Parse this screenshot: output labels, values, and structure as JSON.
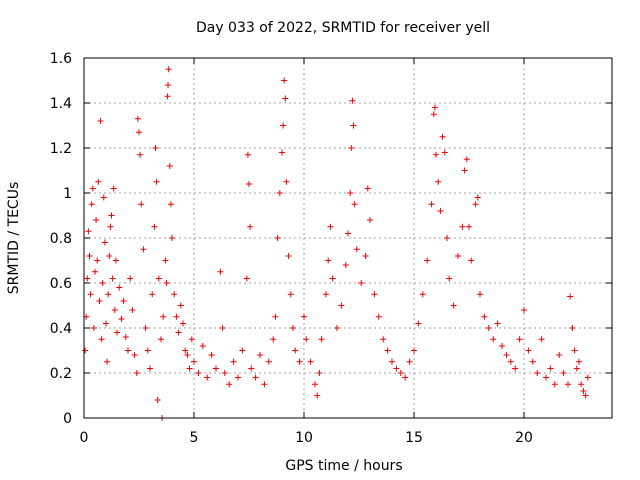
{
  "chart_data": {
    "type": "scatter",
    "title": "Day 033 of 2022, SRMTID for receiver yell",
    "xlabel": "GPS time / hours",
    "ylabel": "SRMTID / TECUs",
    "xlim": [
      0,
      24
    ],
    "ylim": [
      0,
      1.6
    ],
    "xticks": [
      0,
      5,
      10,
      15,
      20
    ],
    "xtick_labels": [
      "0",
      "5",
      "10",
      "15",
      "20"
    ],
    "yticks": [
      0,
      0.2,
      0.4,
      0.6,
      0.8,
      1,
      1.2,
      1.4,
      1.6
    ],
    "ytick_labels": [
      "0",
      "0.2",
      "0.4",
      "0.6",
      "0.8",
      "1",
      "1.2",
      "1.4",
      "1.6"
    ],
    "grid": true,
    "marker": "+",
    "color": "#ee0000",
    "series": [
      {
        "name": "SRMTID",
        "points": [
          [
            0.05,
            0.3
          ],
          [
            0.1,
            0.45
          ],
          [
            0.15,
            0.62
          ],
          [
            0.2,
            0.83
          ],
          [
            0.25,
            0.72
          ],
          [
            0.3,
            0.55
          ],
          [
            0.35,
            0.95
          ],
          [
            0.4,
            1.02
          ],
          [
            0.45,
            0.4
          ],
          [
            0.5,
            0.65
          ],
          [
            0.55,
            0.88
          ],
          [
            0.6,
            0.7
          ],
          [
            0.65,
            1.05
          ],
          [
            0.7,
            0.52
          ],
          [
            0.75,
            1.32
          ],
          [
            0.8,
            0.35
          ],
          [
            0.85,
            0.6
          ],
          [
            0.9,
            0.98
          ],
          [
            0.95,
            0.78
          ],
          [
            1.0,
            0.42
          ],
          [
            1.05,
            0.25
          ],
          [
            1.1,
            0.55
          ],
          [
            1.15,
            0.72
          ],
          [
            1.2,
            0.85
          ],
          [
            1.25,
            0.9
          ],
          [
            1.3,
            0.62
          ],
          [
            1.35,
            1.02
          ],
          [
            1.4,
            0.48
          ],
          [
            1.45,
            0.7
          ],
          [
            1.5,
            0.38
          ],
          [
            1.6,
            0.58
          ],
          [
            1.7,
            0.44
          ],
          [
            1.8,
            0.52
          ],
          [
            1.9,
            0.36
          ],
          [
            2.0,
            0.3
          ],
          [
            2.1,
            0.62
          ],
          [
            2.2,
            0.48
          ],
          [
            2.3,
            0.28
          ],
          [
            2.4,
            0.2
          ],
          [
            2.45,
            1.33
          ],
          [
            2.5,
            1.27
          ],
          [
            2.55,
            1.17
          ],
          [
            2.6,
            0.95
          ],
          [
            2.7,
            0.75
          ],
          [
            2.8,
            0.4
          ],
          [
            2.9,
            0.3
          ],
          [
            3.0,
            0.22
          ],
          [
            3.1,
            0.55
          ],
          [
            3.2,
            0.85
          ],
          [
            3.25,
            1.2
          ],
          [
            3.3,
            1.05
          ],
          [
            3.35,
            0.08
          ],
          [
            3.4,
            0.62
          ],
          [
            3.5,
            0.35
          ],
          [
            3.55,
            0.0
          ],
          [
            3.6,
            0.45
          ],
          [
            3.7,
            0.7
          ],
          [
            3.75,
            0.6
          ],
          [
            3.8,
            1.43
          ],
          [
            3.82,
            1.48
          ],
          [
            3.85,
            1.55
          ],
          [
            3.9,
            1.12
          ],
          [
            3.95,
            0.95
          ],
          [
            4.0,
            0.8
          ],
          [
            4.1,
            0.55
          ],
          [
            4.2,
            0.45
          ],
          [
            4.3,
            0.38
          ],
          [
            4.4,
            0.5
          ],
          [
            4.5,
            0.42
          ],
          [
            4.6,
            0.3
          ],
          [
            4.7,
            0.28
          ],
          [
            4.8,
            0.22
          ],
          [
            4.9,
            0.35
          ],
          [
            5.0,
            0.25
          ],
          [
            5.2,
            0.2
          ],
          [
            5.4,
            0.32
          ],
          [
            5.6,
            0.18
          ],
          [
            5.8,
            0.28
          ],
          [
            6.0,
            0.22
          ],
          [
            6.2,
            0.65
          ],
          [
            6.3,
            0.4
          ],
          [
            6.4,
            0.2
          ],
          [
            6.6,
            0.15
          ],
          [
            6.8,
            0.25
          ],
          [
            7.0,
            0.18
          ],
          [
            7.2,
            0.3
          ],
          [
            7.4,
            0.62
          ],
          [
            7.45,
            1.17
          ],
          [
            7.5,
            1.04
          ],
          [
            7.55,
            0.85
          ],
          [
            7.6,
            0.22
          ],
          [
            7.8,
            0.18
          ],
          [
            8.0,
            0.28
          ],
          [
            8.2,
            0.15
          ],
          [
            8.4,
            0.25
          ],
          [
            8.6,
            0.35
          ],
          [
            8.7,
            0.45
          ],
          [
            8.8,
            0.8
          ],
          [
            8.9,
            1.0
          ],
          [
            9.0,
            1.18
          ],
          [
            9.05,
            1.3
          ],
          [
            9.1,
            1.5
          ],
          [
            9.15,
            1.42
          ],
          [
            9.2,
            1.05
          ],
          [
            9.3,
            0.72
          ],
          [
            9.4,
            0.55
          ],
          [
            9.5,
            0.4
          ],
          [
            9.6,
            0.3
          ],
          [
            9.8,
            0.25
          ],
          [
            10.0,
            0.45
          ],
          [
            10.1,
            0.35
          ],
          [
            10.3,
            0.25
          ],
          [
            10.5,
            0.15
          ],
          [
            10.6,
            0.1
          ],
          [
            10.7,
            0.2
          ],
          [
            10.8,
            0.35
          ],
          [
            11.0,
            0.55
          ],
          [
            11.1,
            0.7
          ],
          [
            11.2,
            0.85
          ],
          [
            11.3,
            0.62
          ],
          [
            11.5,
            0.4
          ],
          [
            11.7,
            0.5
          ],
          [
            11.9,
            0.68
          ],
          [
            12.0,
            0.82
          ],
          [
            12.1,
            1.0
          ],
          [
            12.15,
            1.2
          ],
          [
            12.2,
            1.41
          ],
          [
            12.25,
            1.3
          ],
          [
            12.3,
            0.95
          ],
          [
            12.4,
            0.75
          ],
          [
            12.6,
            0.6
          ],
          [
            12.8,
            0.72
          ],
          [
            12.9,
            1.02
          ],
          [
            13.0,
            0.88
          ],
          [
            13.2,
            0.55
          ],
          [
            13.4,
            0.45
          ],
          [
            13.6,
            0.35
          ],
          [
            13.8,
            0.3
          ],
          [
            14.0,
            0.25
          ],
          [
            14.2,
            0.22
          ],
          [
            14.4,
            0.2
          ],
          [
            14.6,
            0.18
          ],
          [
            14.8,
            0.25
          ],
          [
            15.0,
            0.3
          ],
          [
            15.2,
            0.42
          ],
          [
            15.4,
            0.55
          ],
          [
            15.6,
            0.7
          ],
          [
            15.8,
            0.95
          ],
          [
            15.9,
            1.35
          ],
          [
            15.95,
            1.38
          ],
          [
            16.0,
            1.17
          ],
          [
            16.1,
            1.05
          ],
          [
            16.2,
            0.92
          ],
          [
            16.3,
            1.25
          ],
          [
            16.4,
            1.18
          ],
          [
            16.5,
            0.8
          ],
          [
            16.6,
            0.62
          ],
          [
            16.8,
            0.5
          ],
          [
            17.0,
            0.72
          ],
          [
            17.2,
            0.85
          ],
          [
            17.3,
            1.1
          ],
          [
            17.4,
            1.15
          ],
          [
            17.5,
            0.85
          ],
          [
            17.6,
            0.7
          ],
          [
            17.8,
            0.95
          ],
          [
            17.9,
            0.98
          ],
          [
            18.0,
            0.55
          ],
          [
            18.2,
            0.45
          ],
          [
            18.4,
            0.4
          ],
          [
            18.6,
            0.35
          ],
          [
            18.8,
            0.42
          ],
          [
            19.0,
            0.32
          ],
          [
            19.2,
            0.28
          ],
          [
            19.4,
            0.25
          ],
          [
            19.6,
            0.22
          ],
          [
            19.8,
            0.35
          ],
          [
            20.0,
            0.48
          ],
          [
            20.2,
            0.3
          ],
          [
            20.4,
            0.25
          ],
          [
            20.6,
            0.2
          ],
          [
            20.8,
            0.35
          ],
          [
            21.0,
            0.18
          ],
          [
            21.2,
            0.22
          ],
          [
            21.4,
            0.15
          ],
          [
            21.6,
            0.28
          ],
          [
            21.8,
            0.2
          ],
          [
            22.0,
            0.15
          ],
          [
            22.1,
            0.54
          ],
          [
            22.2,
            0.4
          ],
          [
            22.3,
            0.3
          ],
          [
            22.4,
            0.22
          ],
          [
            22.5,
            0.25
          ],
          [
            22.6,
            0.15
          ],
          [
            22.7,
            0.12
          ],
          [
            22.8,
            0.1
          ],
          [
            22.9,
            0.18
          ]
        ]
      }
    ]
  }
}
